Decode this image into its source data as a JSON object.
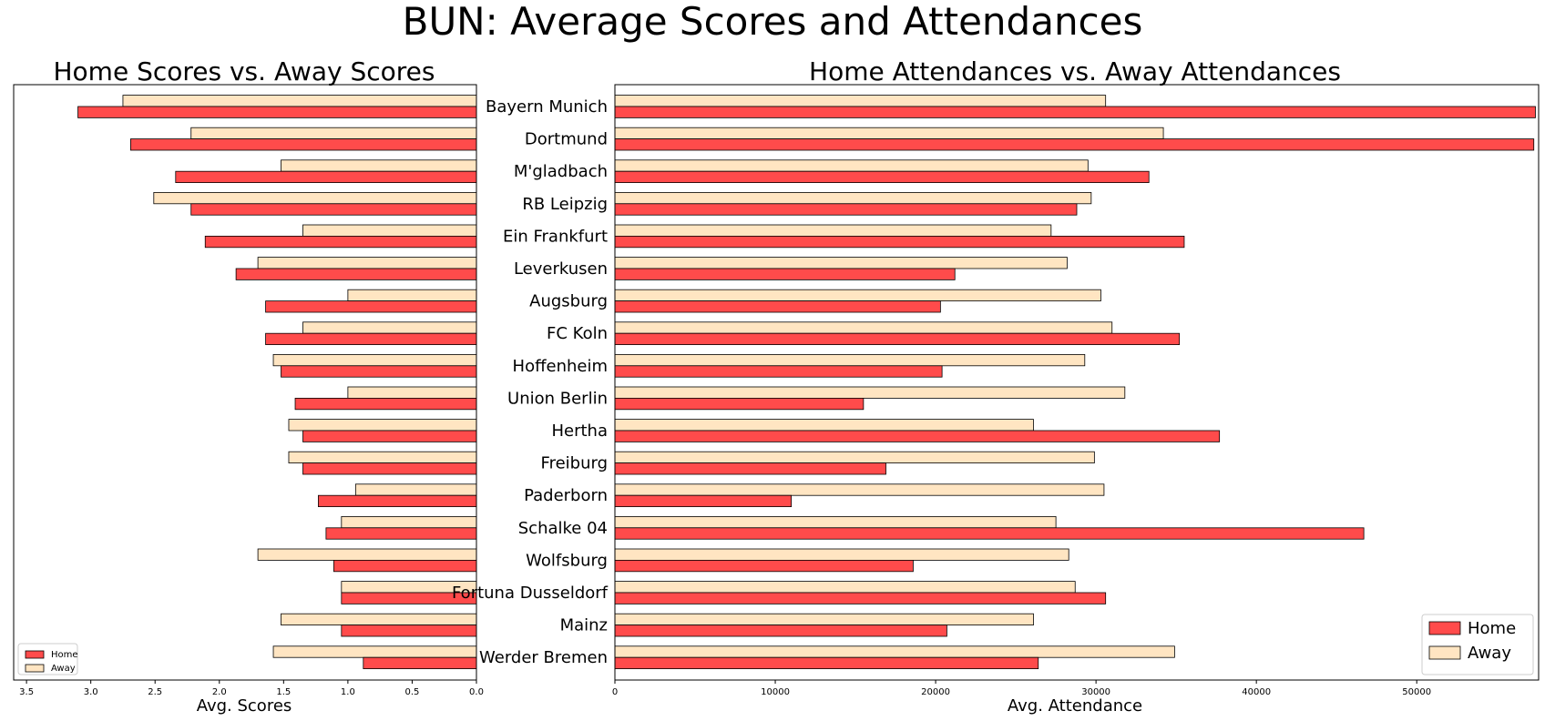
{
  "figure": {
    "title": "BUN: Average Scores and Attendances"
  },
  "colors": {
    "home": "#ff4b4b",
    "away": "#ffe5c2",
    "edge": "#000000"
  },
  "chart_data": [
    {
      "type": "bar",
      "orientation": "horizontal-mirrored",
      "title": "Home Scores vs. Away Scores",
      "xlabel": "Avg. Scores",
      "ylabel": "",
      "xlim": [
        0,
        3.6
      ],
      "xaxis_inverted": true,
      "xticks": [
        "0.0",
        "0.5",
        "1.0",
        "1.5",
        "2.0",
        "2.5",
        "3.0",
        "3.5"
      ],
      "xtick_values": [
        0,
        0.5,
        1.0,
        1.5,
        2.0,
        2.5,
        3.0,
        3.5
      ],
      "legend_position": "lower-left",
      "grid": false,
      "categories": [
        "Bayern Munich",
        "Dortmund",
        "M'gladbach",
        "RB Leipzig",
        "Ein Frankfurt",
        "Leverkusen",
        "Augsburg",
        "FC Koln",
        "Hoffenheim",
        "Union Berlin",
        "Hertha",
        "Freiburg",
        "Paderborn",
        "Schalke 04",
        "Wolfsburg",
        "Fortuna Dusseldorf",
        "Mainz",
        "Werder Bremen"
      ],
      "series": [
        {
          "name": "Home",
          "values": [
            3.1,
            2.69,
            2.34,
            2.22,
            2.11,
            1.87,
            1.64,
            1.64,
            1.52,
            1.41,
            1.35,
            1.35,
            1.23,
            1.17,
            1.11,
            1.05,
            1.05,
            0.88
          ]
        },
        {
          "name": "Away",
          "values": [
            2.75,
            2.22,
            1.52,
            2.51,
            1.35,
            1.7,
            1.0,
            1.35,
            1.58,
            1.0,
            1.46,
            1.46,
            0.94,
            1.05,
            1.7,
            1.05,
            1.52,
            1.58
          ]
        }
      ]
    },
    {
      "type": "bar",
      "orientation": "horizontal",
      "title": "Home Attendances vs. Away Attendances",
      "xlabel": "Avg. Attendance",
      "ylabel": "",
      "xlim": [
        0,
        57600
      ],
      "xticks": [
        "0",
        "10000",
        "20000",
        "30000",
        "40000",
        "50000"
      ],
      "xtick_values": [
        0,
        10000,
        20000,
        30000,
        40000,
        50000
      ],
      "legend_position": "lower-right",
      "grid": false,
      "categories": [
        "Bayern Munich",
        "Dortmund",
        "M'gladbach",
        "RB Leipzig",
        "Ein Frankfurt",
        "Leverkusen",
        "Augsburg",
        "FC Koln",
        "Hoffenheim",
        "Union Berlin",
        "Hertha",
        "Freiburg",
        "Paderborn",
        "Schalke 04",
        "Wolfsburg",
        "Fortuna Dusseldorf",
        "Mainz",
        "Werder Bremen"
      ],
      "series": [
        {
          "name": "Home",
          "values": [
            57400,
            57300,
            33300,
            28800,
            35500,
            21200,
            20300,
            35200,
            20400,
            15500,
            37700,
            16900,
            11000,
            46700,
            18600,
            30600,
            20700,
            26400
          ]
        },
        {
          "name": "Away",
          "values": [
            30600,
            34200,
            29500,
            29700,
            27200,
            28200,
            30300,
            31000,
            29300,
            31800,
            26100,
            29900,
            30500,
            27500,
            28300,
            28700,
            26100,
            34900
          ]
        }
      ]
    }
  ]
}
